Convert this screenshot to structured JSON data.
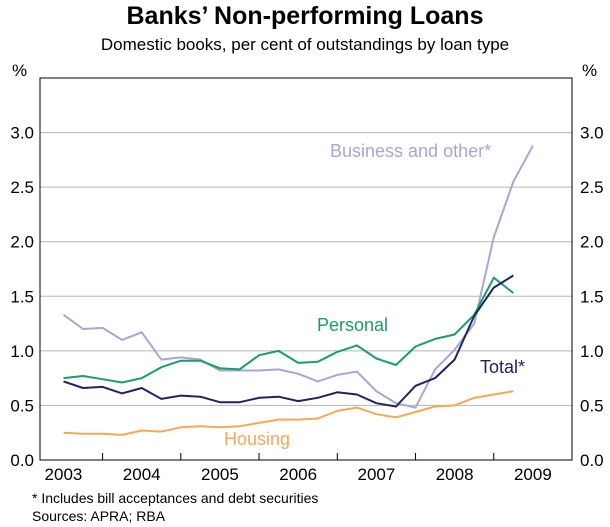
{
  "chart_data": {
    "type": "line",
    "title": "Banks’ Non-performing Loans",
    "subtitle": "Domestic books, per cent of outstandings by loan type",
    "ylabel_left": "%",
    "ylabel_right": "%",
    "ylim": [
      0,
      3.5
    ],
    "yticks": [
      "0.0",
      "0.5",
      "1.0",
      "1.5",
      "2.0",
      "2.5",
      "3.0"
    ],
    "xlim": [
      2002.7,
      2009.5
    ],
    "xticks": [
      "2003",
      "2004",
      "2005",
      "2006",
      "2007",
      "2008",
      "2009"
    ],
    "grid": true,
    "series": [
      {
        "name": "Business and other*",
        "color": "#a3a8d4",
        "x": [
          2003.0,
          2003.25,
          2003.5,
          2003.75,
          2004.0,
          2004.25,
          2004.5,
          2004.75,
          2005.0,
          2005.25,
          2005.5,
          2005.75,
          2006.0,
          2006.25,
          2006.5,
          2006.75,
          2007.0,
          2007.25,
          2007.5,
          2007.75,
          2008.0,
          2008.25,
          2008.5,
          2008.75,
          2009.0
        ],
        "values": [
          1.33,
          1.2,
          1.21,
          1.1,
          1.17,
          0.92,
          0.94,
          0.92,
          0.82,
          0.82,
          0.82,
          0.83,
          0.79,
          0.72,
          0.78,
          0.81,
          0.63,
          0.52,
          0.48,
          0.83,
          1.01,
          1.25,
          2.04,
          2.55,
          2.88
        ]
      },
      {
        "name": "Personal",
        "color": "#1a9e68",
        "x": [
          2003.0,
          2003.25,
          2003.5,
          2003.75,
          2004.0,
          2004.25,
          2004.5,
          2004.75,
          2005.0,
          2005.25,
          2005.5,
          2005.75,
          2006.0,
          2006.25,
          2006.5,
          2006.75,
          2007.0,
          2007.25,
          2007.5,
          2007.75,
          2008.0,
          2008.25,
          2008.5,
          2008.75,
          2009.0
        ],
        "values": [
          0.75,
          0.77,
          0.74,
          0.71,
          0.75,
          0.85,
          0.91,
          0.91,
          0.84,
          0.83,
          0.96,
          1.0,
          0.89,
          0.9,
          0.99,
          1.05,
          0.93,
          0.87,
          1.04,
          1.11,
          1.15,
          1.33,
          1.67,
          1.53,
          null
        ]
      },
      {
        "name": "Total*",
        "color": "#1f2266",
        "x": [
          2003.0,
          2003.25,
          2003.5,
          2003.75,
          2004.0,
          2004.25,
          2004.5,
          2004.75,
          2005.0,
          2005.25,
          2005.5,
          2005.75,
          2006.0,
          2006.25,
          2006.5,
          2006.75,
          2007.0,
          2007.25,
          2007.5,
          2007.75,
          2008.0,
          2008.25,
          2008.5,
          2008.75,
          2009.0
        ],
        "values": [
          0.72,
          0.66,
          0.67,
          0.61,
          0.66,
          0.56,
          0.59,
          0.58,
          0.53,
          0.53,
          0.57,
          0.58,
          0.54,
          0.57,
          0.62,
          0.6,
          0.52,
          0.49,
          0.68,
          0.75,
          0.92,
          1.32,
          1.58,
          1.69,
          null
        ]
      },
      {
        "name": "Housing",
        "color": "#f4a95a",
        "x": [
          2003.0,
          2003.25,
          2003.5,
          2003.75,
          2004.0,
          2004.25,
          2004.5,
          2004.75,
          2005.0,
          2005.25,
          2005.5,
          2005.75,
          2006.0,
          2006.25,
          2006.5,
          2006.75,
          2007.0,
          2007.25,
          2007.5,
          2007.75,
          2008.0,
          2008.25,
          2008.5,
          2008.75,
          2009.0
        ],
        "values": [
          0.25,
          0.24,
          0.24,
          0.23,
          0.27,
          0.26,
          0.3,
          0.31,
          0.3,
          0.31,
          0.34,
          0.37,
          0.37,
          0.38,
          0.45,
          0.48,
          0.42,
          0.39,
          0.44,
          0.49,
          0.5,
          0.57,
          0.6,
          0.63,
          null
        ]
      }
    ],
    "annotations": [
      {
        "text": "Business and other*",
        "series": 0
      },
      {
        "text": "Personal",
        "series": 1
      },
      {
        "text": "Total*",
        "series": 2
      },
      {
        "text": "Housing",
        "series": 3
      }
    ]
  },
  "footnote": "*   Includes bill acceptances and debt securities",
  "sources": "Sources: APRA; RBA"
}
